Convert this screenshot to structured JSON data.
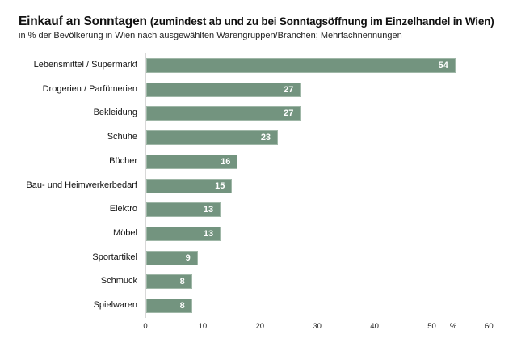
{
  "header": {
    "title_main": "Einkauf an Sonntagen",
    "title_paren": "(zumindest ab und zu bei Sonntagsöffnung im Einzelhandel in Wien)",
    "subtitle": "in % der Bevölkerung  in Wien nach ausgewählten  Warengruppen/Branchen;   Mehrfachnennungen"
  },
  "axis": {
    "ticks": [
      "0",
      "10",
      "20",
      "30",
      "40",
      "50",
      "60"
    ],
    "unit": "%"
  },
  "colors": {
    "bar": "#73947f",
    "bar_label": "#ffffff"
  },
  "chart_data": {
    "type": "bar",
    "orientation": "horizontal",
    "title": "Einkauf an Sonntagen (zumindest ab und zu bei Sonntagsöffnung im Einzelhandel in Wien)",
    "subtitle": "in % der Bevölkerung in Wien nach ausgewählten Warengruppen/Branchen; Mehrfachnennungen",
    "categories": [
      "Lebensmittel / Supermarkt",
      "Drogerien / Parfümerien",
      "Bekleidung",
      "Schuhe",
      "Bücher",
      "Bau- und Heimwerkerbedarf",
      "Elektro",
      "Möbel",
      "Sportartikel",
      "Schmuck",
      "Spielwaren"
    ],
    "values": [
      54,
      27,
      27,
      23,
      16,
      15,
      13,
      13,
      9,
      8,
      8
    ],
    "xlabel": "%",
    "ylabel": "",
    "xlim": [
      0,
      60
    ],
    "xticks": [
      0,
      10,
      20,
      30,
      40,
      50,
      60
    ],
    "grid": false,
    "legend": null,
    "data_labels": true
  },
  "bars": [
    {
      "label": "Lebensmittel / Supermarkt",
      "value": "54"
    },
    {
      "label": "Drogerien / Parfümerien",
      "value": "27"
    },
    {
      "label": "Bekleidung",
      "value": "27"
    },
    {
      "label": "Schuhe",
      "value": "23"
    },
    {
      "label": "Bücher",
      "value": "16"
    },
    {
      "label": "Bau- und Heimwerkerbedarf",
      "value": "15"
    },
    {
      "label": "Elektro",
      "value": "13"
    },
    {
      "label": "Möbel",
      "value": "13"
    },
    {
      "label": "Sportartikel",
      "value": "9"
    },
    {
      "label": "Schmuck",
      "value": "8"
    },
    {
      "label": "Spielwaren",
      "value": "8"
    }
  ]
}
